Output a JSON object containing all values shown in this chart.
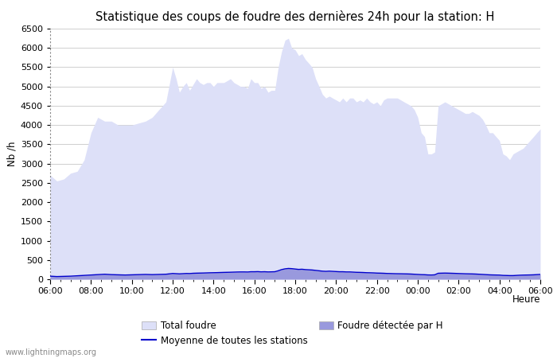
{
  "title": "Statistique des coups de foudre des dernières 24h pour la station: H",
  "ylabel": "Nb /h",
  "xlabel": "Heure",
  "watermark": "www.lightningmaps.org",
  "ylim": [
    0,
    6500
  ],
  "yticks": [
    0,
    500,
    1000,
    1500,
    2000,
    2500,
    3000,
    3500,
    4000,
    4500,
    5000,
    5500,
    6000,
    6500
  ],
  "xtick_labels": [
    "06:00",
    "08:00",
    "10:00",
    "12:00",
    "14:00",
    "16:00",
    "18:00",
    "20:00",
    "22:00",
    "00:00",
    "02:00",
    "04:00",
    "06:00"
  ],
  "bg_color": "#ffffff",
  "grid_color": "#c8c8c8",
  "fill_total_color": "#dde0f8",
  "fill_station_color": "#9999dd",
  "line_mean_color": "#0000cc",
  "title_fontsize": 10.5,
  "axis_fontsize": 8.5,
  "tick_fontsize": 8,
  "legend_labels": [
    "Total foudre",
    "Moyenne de toutes les stations",
    "Foudre détectée par H"
  ],
  "x_hours": [
    6,
    6.33,
    6.67,
    7,
    7.33,
    7.67,
    8,
    8.33,
    8.67,
    9,
    9.33,
    9.67,
    10,
    10.33,
    10.67,
    11,
    11.33,
    11.67,
    12,
    12.17,
    12.33,
    12.5,
    12.67,
    12.83,
    13,
    13.17,
    13.33,
    13.5,
    13.67,
    13.83,
    14,
    14.17,
    14.33,
    14.5,
    14.67,
    14.83,
    15,
    15.17,
    15.33,
    15.5,
    15.67,
    15.83,
    16,
    16.17,
    16.33,
    16.5,
    16.67,
    16.83,
    17,
    17.17,
    17.33,
    17.5,
    17.67,
    17.83,
    18,
    18.17,
    18.33,
    18.5,
    18.67,
    18.83,
    19,
    19.17,
    19.33,
    19.5,
    19.67,
    19.83,
    20,
    20.17,
    20.33,
    20.5,
    20.67,
    20.83,
    21,
    21.17,
    21.33,
    21.5,
    21.67,
    21.83,
    22,
    22.17,
    22.33,
    22.5,
    22.67,
    22.83,
    23,
    23.17,
    23.33,
    23.5,
    23.67,
    23.83,
    24,
    24.17,
    24.33,
    24.5,
    24.67,
    24.83,
    25,
    25.17,
    25.33,
    25.5,
    25.67,
    25.83,
    26,
    26.17,
    26.33,
    26.5,
    26.67,
    26.83,
    27,
    27.17,
    27.33,
    27.5,
    27.67,
    27.83,
    28,
    28.17,
    28.33,
    28.5,
    28.67,
    28.83,
    29,
    29.17,
    29.33,
    29.5,
    29.67,
    29.83,
    30
  ],
  "total_foudre": [
    2700,
    2550,
    2600,
    2750,
    2800,
    3100,
    3800,
    4200,
    4100,
    4100,
    4000,
    4000,
    4000,
    4050,
    4100,
    4200,
    4400,
    4600,
    5500,
    5200,
    4850,
    5000,
    5100,
    4900,
    5050,
    5200,
    5100,
    5050,
    5100,
    5100,
    5000,
    5100,
    5100,
    5100,
    5150,
    5200,
    5100,
    5050,
    5000,
    5000,
    4950,
    5200,
    5100,
    5100,
    4950,
    5000,
    4850,
    4900,
    4900,
    5500,
    5900,
    6200,
    6250,
    6000,
    5950,
    5800,
    5850,
    5700,
    5600,
    5500,
    5200,
    5000,
    4800,
    4700,
    4750,
    4700,
    4650,
    4600,
    4700,
    4600,
    4700,
    4700,
    4600,
    4650,
    4600,
    4700,
    4600,
    4550,
    4600,
    4500,
    4650,
    4700,
    4700,
    4700,
    4700,
    4650,
    4600,
    4550,
    4500,
    4400,
    4200,
    3800,
    3700,
    3250,
    3250,
    3300,
    4500,
    4550,
    4600,
    4550,
    4500,
    4450,
    4400,
    4350,
    4300,
    4300,
    4350,
    4300,
    4250,
    4150,
    4000,
    3800,
    3800,
    3700,
    3600,
    3250,
    3200,
    3100,
    3250,
    3300,
    3350,
    3400,
    3500,
    3600,
    3700,
    3800,
    3900
  ],
  "foudre_station": [
    80,
    70,
    75,
    80,
    90,
    100,
    110,
    120,
    130,
    120,
    115,
    110,
    115,
    120,
    125,
    120,
    125,
    130,
    150,
    145,
    140,
    145,
    150,
    148,
    155,
    158,
    160,
    162,
    165,
    168,
    170,
    172,
    175,
    178,
    180,
    182,
    185,
    188,
    190,
    190,
    188,
    195,
    195,
    198,
    192,
    195,
    190,
    192,
    195,
    220,
    250,
    270,
    280,
    275,
    265,
    255,
    260,
    250,
    245,
    240,
    230,
    220,
    210,
    205,
    210,
    205,
    200,
    195,
    195,
    190,
    190,
    185,
    180,
    178,
    175,
    170,
    168,
    165,
    160,
    158,
    155,
    150,
    148,
    145,
    143,
    142,
    140,
    138,
    135,
    130,
    125,
    120,
    118,
    112,
    110,
    115,
    155,
    158,
    160,
    158,
    155,
    152,
    148,
    145,
    142,
    140,
    138,
    135,
    130,
    125,
    120,
    115,
    112,
    110,
    108,
    100,
    98,
    95,
    95,
    100,
    105,
    108,
    110,
    112,
    115,
    120,
    125
  ],
  "mean_line": [
    80,
    70,
    75,
    80,
    90,
    100,
    110,
    120,
    130,
    120,
    115,
    110,
    115,
    120,
    125,
    120,
    125,
    130,
    150,
    145,
    140,
    145,
    150,
    148,
    155,
    158,
    160,
    162,
    165,
    168,
    170,
    172,
    175,
    178,
    180,
    182,
    185,
    188,
    190,
    190,
    188,
    195,
    195,
    198,
    192,
    195,
    190,
    192,
    195,
    220,
    250,
    270,
    280,
    275,
    265,
    255,
    260,
    250,
    245,
    240,
    230,
    220,
    210,
    205,
    210,
    205,
    200,
    195,
    195,
    190,
    190,
    185,
    180,
    178,
    175,
    170,
    168,
    165,
    160,
    158,
    155,
    150,
    148,
    145,
    143,
    142,
    140,
    138,
    135,
    130,
    125,
    120,
    118,
    112,
    110,
    115,
    155,
    158,
    160,
    158,
    155,
    152,
    148,
    145,
    142,
    140,
    138,
    135,
    130,
    125,
    120,
    115,
    112,
    110,
    108,
    100,
    98,
    95,
    95,
    100,
    105,
    108,
    110,
    112,
    115,
    120,
    125
  ]
}
